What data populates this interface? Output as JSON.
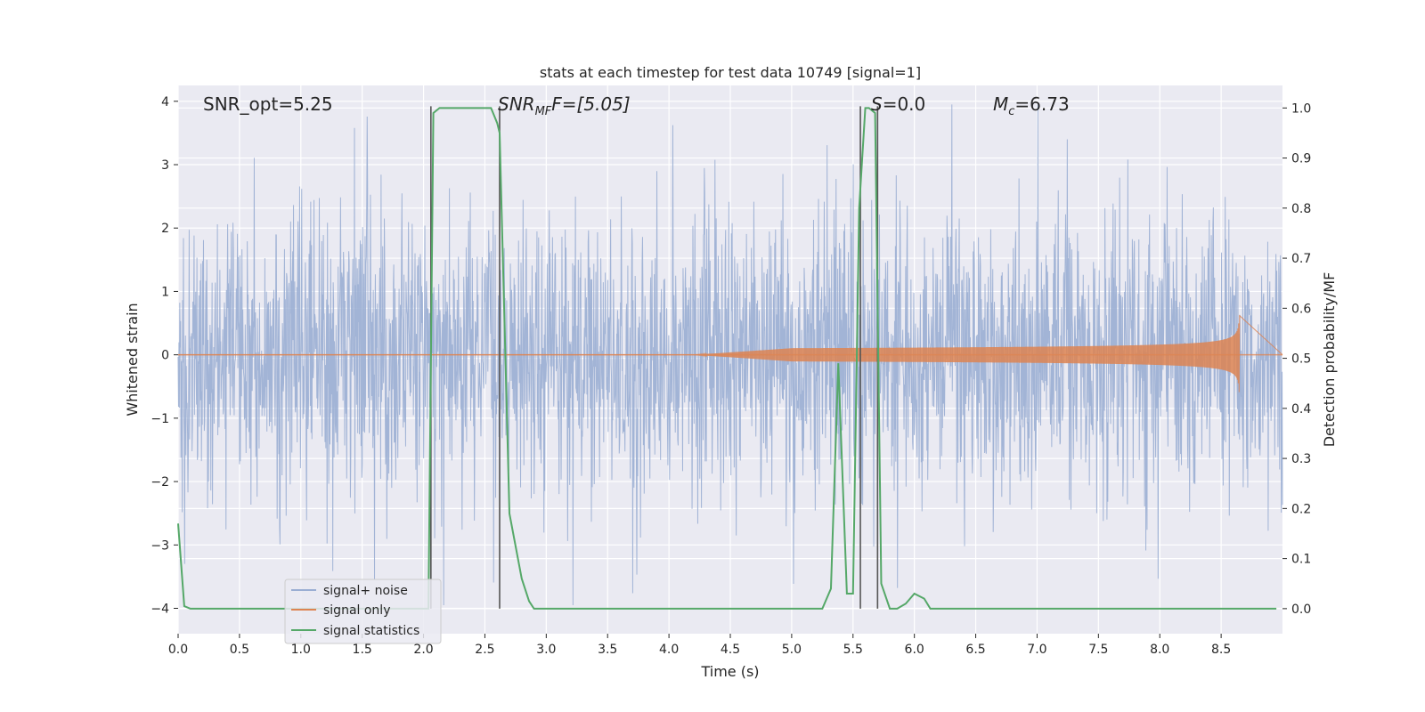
{
  "chart_data": {
    "type": "line",
    "title": "stats at each timestep for test data 10749 [signal=1]",
    "xlabel": "Time (s)",
    "ylabel_left": "Whitened strain",
    "ylabel_right": "Detection probability/MF",
    "xlim": [
      0.0,
      9.0
    ],
    "ylim_left": [
      -4.4,
      4.25
    ],
    "ylim_right": [
      -0.05,
      1.045
    ],
    "x_ticks": [
      "0.0",
      "0.5",
      "1.0",
      "1.5",
      "2.0",
      "2.5",
      "3.0",
      "3.5",
      "4.0",
      "4.5",
      "5.0",
      "5.5",
      "6.0",
      "6.5",
      "7.0",
      "7.5",
      "8.0",
      "8.5"
    ],
    "y_ticks_left": [
      "4",
      "3",
      "2",
      "1",
      "0",
      "−1",
      "−2",
      "−3",
      "−4"
    ],
    "y_ticks_right": [
      "1.0",
      "0.9",
      "0.8",
      "0.7",
      "0.6",
      "0.5",
      "0.4",
      "0.3",
      "0.2",
      "0.1",
      "0.0"
    ],
    "grid": true,
    "legend_position": "lower-left",
    "colors": {
      "plot_background": "#eaeaf2",
      "grid": "#ffffff",
      "noise": "#9aaed3",
      "signal": "#dd8452",
      "statistics": "#55a868",
      "vlines": "#555555"
    },
    "annotations": {
      "snr_opt": "SNR_opt=5.25",
      "snr_mf_main": "SNR",
      "snr_mf_sub": "MF",
      "snr_mf_value": "F=[5.05]",
      "s_main": "S",
      "s_value": "=0.0",
      "mc_main": "M",
      "mc_sub": "c",
      "mc_value": "=6.73"
    },
    "series": [
      {
        "name": "signal+ noise",
        "axis": "left",
        "description_of_values": "whitened strain time series, approx. Gaussian noise with sigma ~1 over x in [0, 9]"
      },
      {
        "name": "signal only",
        "axis": "left",
        "chirp": {
          "t_start": 5.0,
          "t_merge": 8.65,
          "peak_amplitude": 0.65
        }
      },
      {
        "name": "signal statistics",
        "axis": "right",
        "x": [
          0.0,
          0.05,
          0.1,
          0.2,
          0.5,
          1.0,
          1.5,
          2.0,
          2.04,
          2.08,
          2.13,
          2.2,
          2.5,
          2.55,
          2.6,
          2.62,
          2.7,
          2.8,
          2.86,
          2.9,
          3.5,
          4.0,
          4.5,
          5.0,
          5.1,
          5.25,
          5.32,
          5.38,
          5.45,
          5.5,
          5.55,
          5.6,
          5.63,
          5.68,
          5.73,
          5.8,
          5.86,
          5.93,
          6.0,
          6.08,
          6.13,
          6.5,
          7.0,
          7.5,
          8.0,
          8.5,
          8.95
        ],
        "values": [
          0.17,
          0.005,
          0.0,
          0.0,
          0.0,
          0.0,
          0.0,
          0.0,
          0.0,
          0.99,
          1.0,
          1.0,
          1.0,
          1.0,
          0.97,
          0.95,
          0.19,
          0.06,
          0.015,
          0.0,
          0.0,
          0.0,
          0.0,
          0.0,
          0.0,
          0.0,
          0.04,
          0.49,
          0.03,
          0.03,
          0.8,
          1.0,
          1.0,
          0.99,
          0.05,
          0.0,
          0.0,
          0.01,
          0.03,
          0.02,
          0.0,
          0.0,
          0.0,
          0.0,
          0.0,
          0.0,
          0.0
        ]
      }
    ],
    "vertical_lines_x": [
      2.06,
      2.62,
      5.56,
      5.7
    ]
  }
}
